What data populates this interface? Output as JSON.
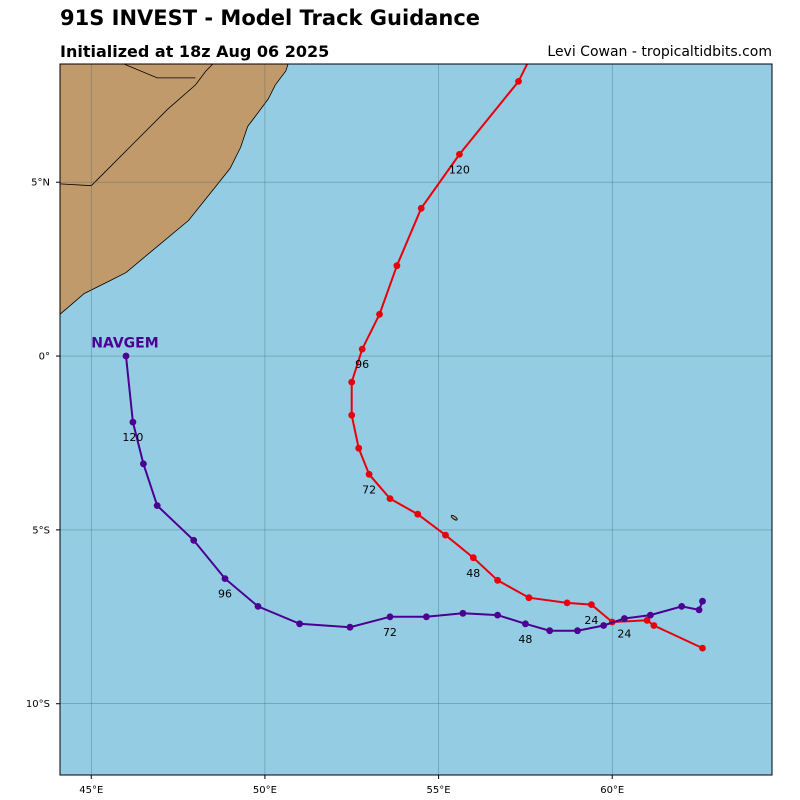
{
  "header": {
    "title": "91S INVEST - Model Track Guidance",
    "subtitle": "Initialized at 18z Aug 06 2025",
    "credit": "Levi Cowan - tropicaltidbits.com"
  },
  "colors": {
    "ocean": "#94cde3",
    "land": "#c19a6b",
    "red_track": "#e8000b",
    "purple_track": "#4b0092",
    "grid": "#3d5f6f"
  },
  "chart_data": {
    "type": "line",
    "x_axis": {
      "ticks": [
        45,
        50,
        55,
        60
      ],
      "tick_labels": [
        "45°E",
        "50°E",
        "55°E",
        "60°E"
      ],
      "range": [
        44.1,
        64.6
      ]
    },
    "y_axis": {
      "ticks": [
        5,
        0,
        -5,
        -10
      ],
      "tick_labels": [
        "5°N",
        "0°",
        "5°S",
        "10°S"
      ],
      "range": [
        -12.05,
        8.4
      ]
    },
    "grid": true,
    "series": [
      {
        "name": "",
        "color": "#e8000b",
        "points": [
          [
            62.6,
            -8.4
          ],
          [
            61.2,
            -7.75
          ],
          [
            61.0,
            -7.6
          ],
          [
            60.0,
            -7.65
          ],
          [
            59.4,
            -7.15
          ],
          [
            58.7,
            -7.1
          ],
          [
            57.6,
            -6.95
          ],
          [
            56.7,
            -6.45
          ],
          [
            56.0,
            -5.8
          ],
          [
            55.2,
            -5.15
          ],
          [
            54.4,
            -4.55
          ],
          [
            53.6,
            -4.1
          ],
          [
            53.0,
            -3.4
          ],
          [
            52.7,
            -2.65
          ],
          [
            52.5,
            -1.7
          ],
          [
            52.5,
            -0.75
          ],
          [
            52.8,
            0.2
          ],
          [
            53.3,
            1.2
          ],
          [
            53.8,
            2.6
          ],
          [
            54.5,
            4.25
          ],
          [
            55.6,
            5.8
          ],
          [
            57.3,
            7.9
          ],
          [
            57.6,
            8.5
          ]
        ],
        "labels": [
          {
            "text": "24",
            "lon": 59.4,
            "lat": -7.7
          },
          {
            "text": "48",
            "lon": 56.0,
            "lat": -6.35
          },
          {
            "text": "72",
            "lon": 53.0,
            "lat": -3.95
          },
          {
            "text": "96",
            "lon": 52.8,
            "lat": -0.35
          },
          {
            "text": "120",
            "lon": 55.6,
            "lat": 5.25
          }
        ]
      },
      {
        "name": "NAVGEM",
        "color": "#4b0092",
        "points": [
          [
            62.6,
            -7.05
          ],
          [
            62.5,
            -7.3
          ],
          [
            62.0,
            -7.2
          ],
          [
            61.1,
            -7.45
          ],
          [
            60.35,
            -7.55
          ],
          [
            59.75,
            -7.75
          ],
          [
            59.0,
            -7.9
          ],
          [
            58.2,
            -7.9
          ],
          [
            57.5,
            -7.7
          ],
          [
            56.7,
            -7.45
          ],
          [
            55.7,
            -7.4
          ],
          [
            54.65,
            -7.5
          ],
          [
            53.6,
            -7.5
          ],
          [
            52.45,
            -7.8
          ],
          [
            51.0,
            -7.7
          ],
          [
            49.8,
            -7.2
          ],
          [
            48.85,
            -6.4
          ],
          [
            47.95,
            -5.3
          ],
          [
            46.9,
            -4.3
          ],
          [
            46.5,
            -3.1
          ],
          [
            46.2,
            -1.9
          ],
          [
            46.0,
            0.0
          ]
        ],
        "label_anchor": {
          "lon": 45.0,
          "lat": 0.25
        },
        "labels": [
          {
            "text": "24",
            "lon": 60.35,
            "lat": -8.1
          },
          {
            "text": "48",
            "lon": 57.5,
            "lat": -8.25
          },
          {
            "text": "72",
            "lon": 53.6,
            "lat": -8.05
          },
          {
            "text": "96",
            "lon": 48.85,
            "lat": -6.95
          },
          {
            "text": "120",
            "lon": 46.2,
            "lat": -2.45
          }
        ]
      }
    ]
  },
  "map": {
    "land": [
      [
        44.1,
        1.2
      ],
      [
        44.8,
        1.8
      ],
      [
        45.6,
        2.2
      ],
      [
        46.0,
        2.4
      ],
      [
        46.6,
        2.9
      ],
      [
        47.2,
        3.4
      ],
      [
        47.8,
        3.9
      ],
      [
        48.2,
        4.4
      ],
      [
        48.6,
        4.9
      ],
      [
        49.0,
        5.4
      ],
      [
        49.3,
        6.0
      ],
      [
        49.5,
        6.6
      ],
      [
        49.8,
        7.0
      ],
      [
        50.1,
        7.4
      ],
      [
        50.3,
        7.8
      ],
      [
        50.6,
        8.2
      ],
      [
        50.7,
        8.5
      ],
      [
        44.1,
        8.5
      ]
    ],
    "borders": [
      [
        [
          44.1,
          4.95
        ],
        [
          45.0,
          4.9
        ],
        [
          46.1,
          6.0
        ],
        [
          47.2,
          7.1
        ],
        [
          48.0,
          7.8
        ],
        [
          48.3,
          8.2
        ],
        [
          48.6,
          8.5
        ]
      ],
      [
        [
          45.7,
          8.5
        ],
        [
          46.9,
          8.0
        ],
        [
          48.0,
          8.0
        ]
      ]
    ],
    "island": {
      "lon": 55.45,
      "lat": -4.65
    }
  }
}
